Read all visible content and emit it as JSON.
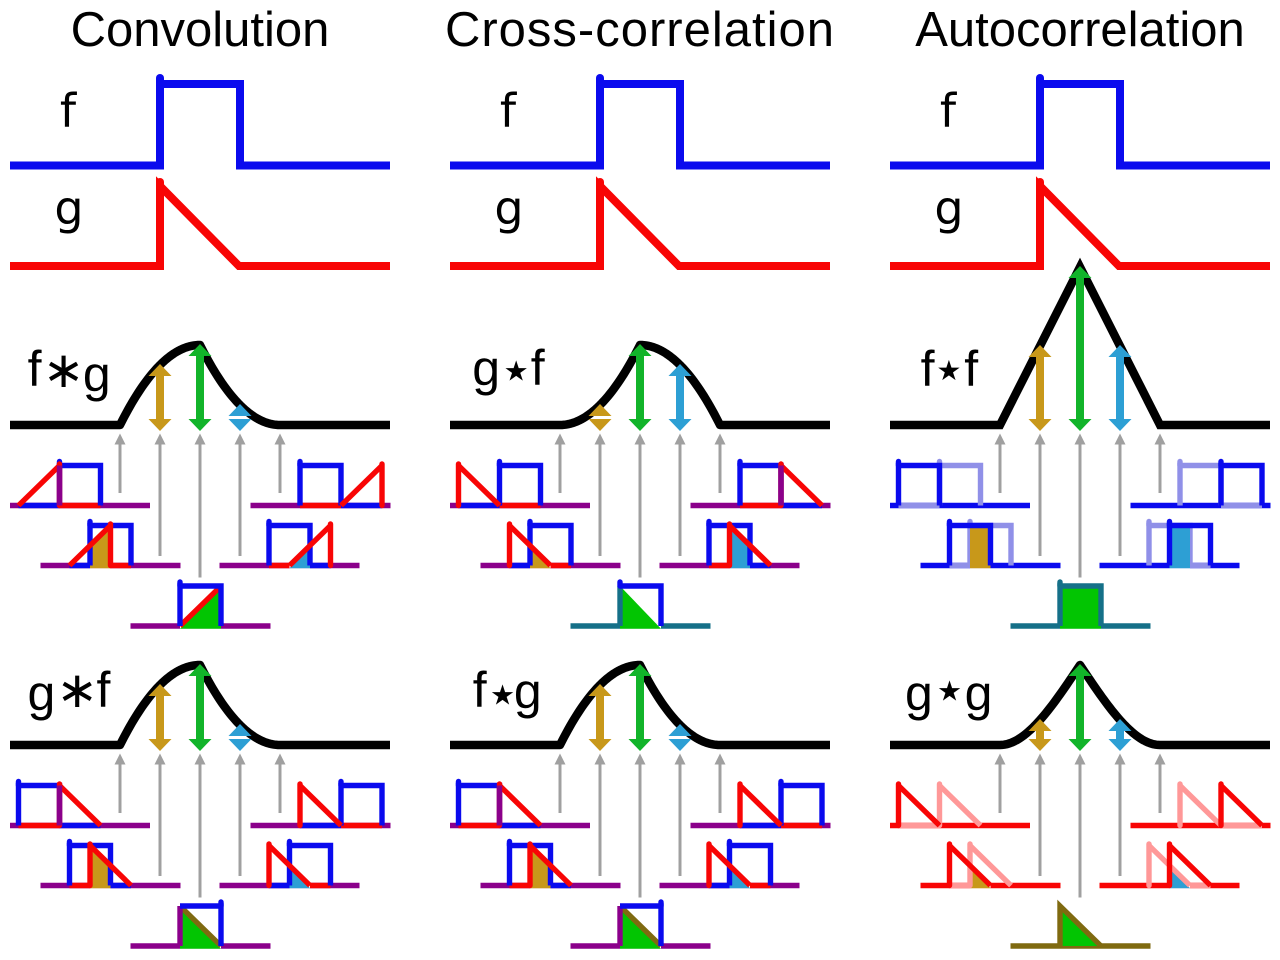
{
  "figure": {
    "description": "Visual comparison of convolution, cross-correlation and autocorrelation of a boxcar pulse f and a decaying ramp g",
    "background": "#ffffff",
    "f_label": "f",
    "g_label": "g",
    "signals": {
      "f": "rectangular pulse (boxcar)",
      "g": "decaying ramp with sharp rise"
    },
    "lag_positions": [
      -1,
      -0.5,
      0,
      0.5,
      1
    ],
    "overlap_colors_by_lag": {
      "-0.5": "gold",
      "0": "green",
      "0.5": "cyan"
    },
    "columns": [
      {
        "title": "Convolution",
        "f_label": "f",
        "g_label": "g",
        "panels": [
          {
            "label": {
              "pre": "f",
              "op": "∗",
              "post": "g"
            },
            "operation": "f convolved with g",
            "curve": "skewed-bump",
            "arrows": [
              {
                "lag": -0.5,
                "height": 0.75,
                "color": "gold"
              },
              {
                "lag": 0,
                "height": 1.0,
                "color": "green"
              },
              {
                "lag": 0.5,
                "height": 0.25,
                "color": "cyan"
              }
            ],
            "thumbnails": {
              "fixed": "f",
              "slider": "g-reversed"
            }
          },
          {
            "label": {
              "pre": "g",
              "op": "∗",
              "post": "f"
            },
            "operation": "g convolved with f",
            "curve": "skewed-bump",
            "arrows": [
              {
                "lag": -0.5,
                "height": 0.75,
                "color": "gold"
              },
              {
                "lag": 0,
                "height": 1.0,
                "color": "green"
              },
              {
                "lag": 0.5,
                "height": 0.25,
                "color": "cyan"
              }
            ],
            "thumbnails": {
              "fixed": "g",
              "slider": "f"
            }
          }
        ]
      },
      {
        "title": "Cross-correlation",
        "f_label": "f",
        "g_label": "g",
        "panels": [
          {
            "label": {
              "pre": "g",
              "op": "⋆",
              "post": "f"
            },
            "operation": "cross-correlation of g with f",
            "curve": "skewed-bump-mirrored",
            "arrows": [
              {
                "lag": -0.5,
                "height": 0.25,
                "color": "gold"
              },
              {
                "lag": 0,
                "height": 1.0,
                "color": "green"
              },
              {
                "lag": 0.5,
                "height": 0.75,
                "color": "cyan"
              }
            ],
            "thumbnails": {
              "fixed": "f",
              "slider": "g"
            }
          },
          {
            "label": {
              "pre": "f",
              "op": "⋆",
              "post": "g"
            },
            "operation": "cross-correlation of f with g",
            "curve": "skewed-bump",
            "arrows": [
              {
                "lag": -0.5,
                "height": 0.75,
                "color": "gold"
              },
              {
                "lag": 0,
                "height": 1.0,
                "color": "green"
              },
              {
                "lag": 0.5,
                "height": 0.25,
                "color": "cyan"
              }
            ],
            "thumbnails": {
              "fixed": "g",
              "slider": "f"
            }
          }
        ]
      },
      {
        "title": "Autocorrelation",
        "f_label": "f",
        "g_label": "g",
        "panels": [
          {
            "label": {
              "pre": "f",
              "op": "⋆",
              "post": "f"
            },
            "operation": "autocorrelation of f",
            "curve": "triangle",
            "arrows": [
              {
                "lag": -0.5,
                "height": 0.5,
                "color": "gold"
              },
              {
                "lag": 0,
                "height": 1.0,
                "color": "green"
              },
              {
                "lag": 0.5,
                "height": 0.5,
                "color": "cyan"
              }
            ],
            "thumbnails": {
              "fixed": "f-faded",
              "slider": "f"
            }
          },
          {
            "label": {
              "pre": "g",
              "op": "⋆",
              "post": "g"
            },
            "operation": "autocorrelation of g",
            "curve": "cusp",
            "arrows": [
              {
                "lag": -0.5,
                "height": 0.3125,
                "color": "gold"
              },
              {
                "lag": 0,
                "height": 1.0,
                "color": "green"
              },
              {
                "lag": 0.5,
                "height": 0.3125,
                "color": "cyan"
              }
            ],
            "thumbnails": {
              "fixed": "g-faded",
              "slider": "g"
            }
          }
        ]
      }
    ],
    "colors": {
      "f_blue": "#0a0aee",
      "g_red": "#f80505",
      "curve_black": "#000000",
      "gold": "#c8981a",
      "green_arrow": "#12b42a",
      "green_fill": "#02c502",
      "cyan": "#2d9fd4",
      "gray_arrow": "#a0a0a0",
      "purple_overlap": "#8b008b",
      "teal_overlap": "#157088",
      "olive_overlap": "#7f6a10",
      "faded_blue": "#9090e8",
      "faded_red": "#ff9898",
      "text": "#000000"
    }
  }
}
